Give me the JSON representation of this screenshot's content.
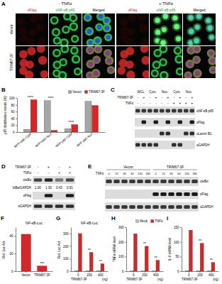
{
  "figure": {
    "panel_labels": [
      "A",
      "B",
      "C",
      "D",
      "E",
      "F",
      "G",
      "H",
      "I"
    ],
    "a": {
      "conditions": [
        "- TNFα",
        "+ TNFα"
      ],
      "columns": [
        "αFlag",
        "αNF-κB p65",
        "Merged"
      ],
      "rows": [
        "Vector",
        "TRIM67-3F"
      ]
    },
    "c": {
      "headers": [
        "WCL",
        "Cyto.",
        "Nuc.",
        "Cyto.",
        "Nuc."
      ],
      "row_labels": [
        "TRIM67-3F",
        "TNFα"
      ],
      "trim67_signs": [
        "-",
        "+",
        "-",
        "+",
        "-",
        "+",
        "-",
        "+",
        "-",
        "+"
      ],
      "tnf_signs": [
        "-",
        "-",
        "-",
        "-",
        "-",
        "-",
        "+",
        "+",
        "+",
        "+"
      ],
      "blots": [
        "αNF-κB p65",
        "αFlag",
        "αLamin B1",
        "αGAPDH"
      ]
    },
    "d": {
      "row_labels": [
        "TRIM67-3F",
        "TNFα"
      ],
      "trim67_signs": [
        "-",
        "+",
        "-",
        "+"
      ],
      "tnf_signs": [
        "-",
        "-",
        "+",
        "+"
      ],
      "blots": [
        "αIκBα",
        "αFlag",
        "αGAPDH"
      ],
      "ratio_label": "IκBa/GAPDH",
      "ratios": [
        "1.00",
        "1.30",
        "0.43",
        "0.91"
      ]
    },
    "e": {
      "groups": [
        "Vector",
        "TRIM67-3F"
      ],
      "row_label": "TNFα",
      "times": [
        "0",
        "15",
        "30",
        "60",
        "120",
        "180"
      ],
      "blots": [
        "αIκBα",
        "αFlag",
        "αGAPDH"
      ]
    }
  },
  "chart_data": [
    {
      "type": "bar",
      "y_label": "p65 distribution events (%)",
      "categories": [
        "RFP+p65-Cyto",
        "RFP+p65-Nuc",
        "RFP-p65-Cyto",
        "RFP-p65-Nuc"
      ],
      "series": [
        {
          "name": "Vector",
          "color": "#a6a6a6",
          "values": [
            8,
            92,
            10,
            90
          ]
        },
        {
          "name": "TRIM67-3F",
          "color": "#d62728",
          "values": [
            95,
            5,
            22,
            78
          ]
        }
      ],
      "ylim": [
        0,
        100
      ],
      "yticks": [
        0,
        20,
        40,
        60,
        80,
        100
      ],
      "legend": "top-right",
      "annotations": [
        {
          "text": "****",
          "category": "RFP+p65-Cyto"
        },
        {
          "text": "****",
          "category": "RFP+p65-Nuc"
        },
        {
          "text": "****",
          "category": "RFP-p65-Cyto"
        }
      ]
    },
    {
      "type": "bar",
      "title": "NF-κB-Luc",
      "y_label": "Rel. Luc Act.",
      "categories": [
        "Vector",
        "TRIM67-3F"
      ],
      "values": [
        42,
        6
      ],
      "color": "#d62728",
      "ylim": [
        0,
        50
      ],
      "yticks": [
        0,
        20,
        40
      ],
      "annotations": [
        {
          "text": "***",
          "category": "TRIM67-3F"
        }
      ]
    },
    {
      "type": "bar",
      "title": "NF-κB-Luc",
      "y_label": "Rel. Luc Act.",
      "x_label": "TRIM67-3F",
      "x_unit": "(ng)",
      "categories": [
        "0",
        "200",
        "400"
      ],
      "series": [
        {
          "color": "#bdbdbd",
          "values": [
            4,
            4,
            4
          ]
        },
        {
          "color": "#d62728",
          "values": [
            300,
            150,
            60
          ]
        }
      ],
      "ylim": [
        0,
        350
      ],
      "yticks": [
        0,
        100,
        200,
        300
      ],
      "annotations": [
        {
          "text": "**",
          "category": "200"
        },
        {
          "text": "**",
          "category": "400"
        }
      ]
    },
    {
      "type": "bar",
      "y_label": "TNFα mRNA level",
      "x_label": "TRIM67-3F",
      "x_unit": "(ng)",
      "categories": [
        "0",
        "200",
        "400"
      ],
      "series": [
        {
          "name": "Mock",
          "color": "#bdbdbd",
          "values": [
            2,
            2,
            2
          ]
        },
        {
          "name": "TNFα",
          "color": "#d62728",
          "values": [
            255,
            170,
            75
          ]
        }
      ],
      "ylim": [
        0,
        300
      ],
      "yticks": [
        0,
        100,
        200,
        300
      ],
      "legend": "top-right",
      "annotations": [
        {
          "text": "**",
          "category": "200"
        },
        {
          "text": "**",
          "category": "400"
        }
      ]
    },
    {
      "type": "bar",
      "y_label": "IL-6 mRNA level",
      "x_label": "TRIM67-3F",
      "x_unit": "(ng)",
      "categories": [
        "0",
        "200",
        "400"
      ],
      "series": [
        {
          "color": "#bdbdbd",
          "values": [
            2,
            2,
            2
          ]
        },
        {
          "color": "#d62728",
          "values": [
            140,
            95,
            30
          ]
        }
      ],
      "ylim": [
        0,
        150
      ],
      "yticks": [
        0,
        50,
        100,
        150
      ],
      "annotations": [
        {
          "text": "**",
          "category": "200"
        },
        {
          "text": "**",
          "category": "400"
        }
      ]
    }
  ]
}
